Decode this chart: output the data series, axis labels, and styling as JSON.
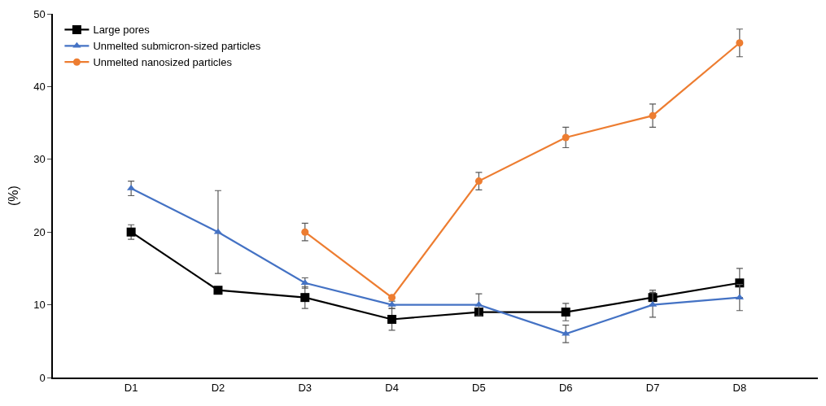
{
  "chart_data": {
    "type": "line",
    "ylabel": "(%)",
    "categories": [
      "D1",
      "D2",
      "D3",
      "D4",
      "D5",
      "D6",
      "D7",
      "D8"
    ],
    "ylim": [
      0,
      50
    ],
    "yticks": [
      0,
      10,
      20,
      30,
      40,
      50
    ],
    "legend": "top left",
    "line_style": "solid",
    "series": [
      {
        "name": "Large pores",
        "color": "#000000",
        "marker": "square",
        "values": [
          20,
          12,
          11,
          8,
          9,
          9,
          11,
          13
        ],
        "errors": [
          1,
          null,
          1.5,
          1.5,
          null,
          1.2,
          1,
          2
        ]
      },
      {
        "name": "Unmelted submicron-sized particles",
        "color": "#4472c4",
        "marker": "triangle",
        "values": [
          26,
          20,
          13,
          10,
          10,
          6,
          10,
          11
        ],
        "errors": [
          1,
          5.7,
          0.7,
          0.5,
          1.5,
          1.2,
          1.7,
          1.8
        ]
      },
      {
        "name": "Unmelted nanosized particles",
        "color": "#ed7d31",
        "marker": "circle",
        "values": [
          null,
          null,
          20,
          11,
          27,
          33,
          36,
          46
        ],
        "errors": [
          null,
          null,
          1.2,
          null,
          1.2,
          1.4,
          1.6,
          1.9
        ]
      }
    ]
  }
}
